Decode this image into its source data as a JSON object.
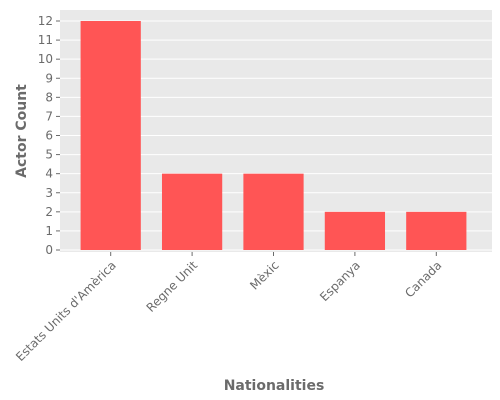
{
  "chart_data": {
    "type": "bar",
    "title": "",
    "xlabel": "Nationalities",
    "ylabel": "Actor Count",
    "categories": [
      "Estats Units d'Amèrica",
      "Regne Unit",
      "Mèxic",
      "Espanya",
      "Canada"
    ],
    "values": [
      12,
      4,
      4,
      2,
      2
    ],
    "ylim": [
      0,
      12
    ],
    "yticks": [
      0,
      1,
      2,
      3,
      4,
      5,
      6,
      7,
      8,
      9,
      10,
      11,
      12
    ],
    "grid": true,
    "legend": "none",
    "colors": {
      "bar": "#ff5555",
      "plot_background": "#e9e9e9",
      "grid": "#ffffff",
      "text": "#6b6b6b"
    }
  }
}
